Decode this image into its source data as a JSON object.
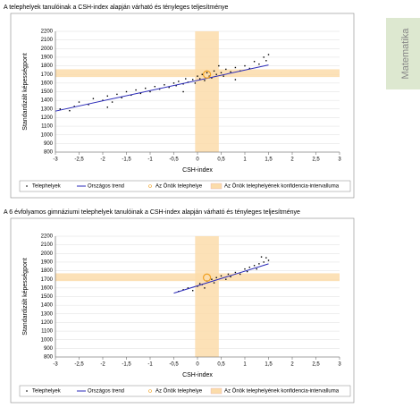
{
  "sidebar": {
    "tab": "Matematika"
  },
  "chart_data": [
    {
      "type": "scatter",
      "title": "A telephelyek tanulóinak a CSH-index alapján várható és tényleges teljesítménye",
      "xlabel": "CSH-index",
      "ylabel": "Standardizált képességpont",
      "xlim": [
        -3,
        3
      ],
      "ylim": [
        800,
        2200
      ],
      "xticks": [
        -3,
        {
          "value": -2.5,
          "label": "-2,5"
        },
        -2,
        {
          "value": -1.5,
          "label": "-1,5"
        },
        -1,
        {
          "value": -0.5,
          "label": "-0,5"
        },
        0,
        {
          "value": 0.5,
          "label": "0,5"
        },
        1,
        {
          "value": 1.5,
          "label": "1,5"
        },
        2,
        {
          "value": 2.5,
          "label": "2,5"
        },
        3
      ],
      "yticks": [
        800,
        900,
        1000,
        1100,
        1200,
        1300,
        1400,
        1500,
        1600,
        1700,
        1800,
        1900,
        2000,
        2100,
        2200
      ],
      "grid": true,
      "series": [
        {
          "name": "Telephelyek",
          "type": "scatter",
          "color": "#000000",
          "x": [
            -2.9,
            -2.6,
            -2.5,
            -2.3,
            -2.2,
            -2.0,
            -1.9,
            -1.8,
            -1.7,
            -1.6,
            -1.5,
            -1.4,
            -1.3,
            -1.2,
            -1.1,
            -1.0,
            -0.9,
            -0.8,
            -0.7,
            -0.6,
            -0.5,
            -0.45,
            -0.4,
            -0.3,
            -0.25,
            -0.2,
            -0.1,
            -0.05,
            0,
            0.05,
            0.1,
            0.15,
            0.2,
            0.25,
            0.3,
            0.35,
            0.4,
            0.5,
            0.55,
            0.6,
            0.7,
            0.8,
            0.9,
            1.0,
            1.1,
            1.2,
            1.3,
            1.4,
            1.45,
            1.5,
            -1.9,
            -2.7,
            0.45,
            -0.3,
            0.8
          ],
          "values": [
            1300,
            1330,
            1380,
            1350,
            1420,
            1400,
            1450,
            1380,
            1470,
            1430,
            1500,
            1460,
            1520,
            1480,
            1540,
            1500,
            1560,
            1530,
            1580,
            1550,
            1600,
            1570,
            1620,
            1590,
            1650,
            1610,
            1640,
            1600,
            1680,
            1650,
            1700,
            1630,
            1720,
            1680,
            1660,
            1740,
            1700,
            1720,
            1680,
            1760,
            1730,
            1780,
            1740,
            1800,
            1770,
            1850,
            1820,
            1900,
            1860,
            1930,
            1320,
            1280,
            1800,
            1500,
            1640
          ]
        },
        {
          "name": "Országos trend",
          "type": "line",
          "color": "#2a2ab8",
          "x": [
            -3,
            1.5
          ],
          "values": [
            1275,
            1810
          ]
        },
        {
          "name": "Az Önök telephelye",
          "type": "marker",
          "color": "#f0a020",
          "x": [
            0.2
          ],
          "values": [
            1700
          ]
        }
      ],
      "band": {
        "name": "Az Önök telephelyének konfidencia-intervalluma",
        "color": "#fbdcaa",
        "x": [
          -0.05,
          0.45
        ],
        "y": [
          1670,
          1760
        ]
      }
    },
    {
      "type": "scatter",
      "title": "A 6 évfolyamos gimnáziumi telephelyek tanulóinak a CSH-index alapján várható és tényleges teljesítménye",
      "xlabel": "CSH-index",
      "ylabel": "Standardizált képességpont",
      "xlim": [
        -3,
        3
      ],
      "ylim": [
        800,
        2200
      ],
      "xticks": [
        -3,
        {
          "value": -2.5,
          "label": "-2,5"
        },
        -2,
        {
          "value": -1.5,
          "label": "-1,5"
        },
        -1,
        {
          "value": -0.5,
          "label": "-0,5"
        },
        0,
        {
          "value": 0.5,
          "label": "0,5"
        },
        1,
        {
          "value": 1.5,
          "label": "1,5"
        },
        2,
        {
          "value": 2.5,
          "label": "2,5"
        },
        3
      ],
      "yticks": [
        800,
        900,
        1000,
        1100,
        1200,
        1300,
        1400,
        1500,
        1600,
        1700,
        1800,
        1900,
        2000,
        2100,
        2200
      ],
      "grid": true,
      "series": [
        {
          "name": "Telephelyek",
          "type": "scatter",
          "color": "#000000",
          "x": [
            -0.4,
            -0.3,
            -0.2,
            -0.1,
            0,
            0.05,
            0.1,
            0.15,
            0.2,
            0.3,
            0.35,
            0.4,
            0.5,
            0.6,
            0.65,
            0.7,
            0.8,
            0.9,
            1.0,
            1.05,
            1.1,
            1.2,
            1.25,
            1.3,
            1.4,
            1.45,
            1.5,
            1.35
          ],
          "values": [
            1560,
            1580,
            1600,
            1570,
            1620,
            1650,
            1640,
            1600,
            1680,
            1700,
            1660,
            1720,
            1740,
            1700,
            1760,
            1730,
            1780,
            1760,
            1820,
            1790,
            1840,
            1860,
            1820,
            1880,
            1900,
            1950,
            1920,
            1960
          ]
        },
        {
          "name": "Országos trend",
          "type": "line",
          "color": "#2a2ab8",
          "x": [
            -0.5,
            1.5
          ],
          "values": [
            1540,
            1880
          ]
        },
        {
          "name": "Az Önök telephelye",
          "type": "marker",
          "color": "#f0a020",
          "x": [
            0.2
          ],
          "values": [
            1720
          ]
        }
      ],
      "band": {
        "name": "Az Önök telephelyének konfidencia-intervalluma",
        "color": "#fbdcaa",
        "x": [
          -0.05,
          0.45
        ],
        "y": [
          1680,
          1770
        ]
      }
    }
  ]
}
